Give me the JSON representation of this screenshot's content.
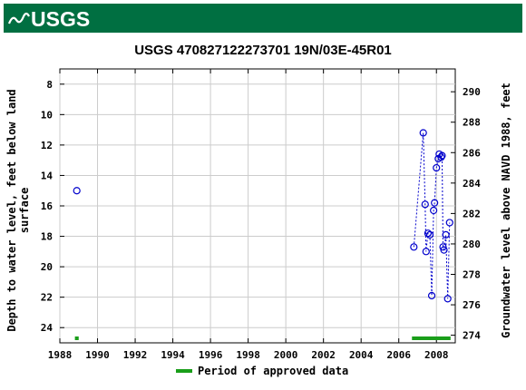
{
  "header": {
    "logo_text": "USGS",
    "bar_color": "#006f41"
  },
  "chart_data": {
    "type": "scatter",
    "title": "USGS 470827122273701 19N/03E-45R01",
    "ylabel_left": "Depth to water level, feet below land surface",
    "ylabel_left_lines": [
      "Depth to water level, feet below land",
      "surface"
    ],
    "ylabel_right": "Groundwater level above NAVD 1988, feet",
    "xlim": [
      1988,
      2009
    ],
    "ylim_left": [
      25,
      7
    ],
    "ylim_right": [
      273.5,
      291.5
    ],
    "x_ticks": [
      1988,
      1990,
      1992,
      1994,
      1996,
      1998,
      2000,
      2002,
      2004,
      2006,
      2008
    ],
    "y_ticks_left": [
      8,
      10,
      12,
      14,
      16,
      18,
      20,
      22,
      24
    ],
    "y_ticks_right": [
      274,
      276,
      278,
      280,
      282,
      284,
      286,
      288,
      290
    ],
    "grid": true,
    "series": [
      {
        "color": "#0000cc",
        "marker": "open-circle",
        "points": [
          {
            "x": 1988.9,
            "y": 15.0
          },
          {
            "x": 2006.8,
            "y": 18.7
          },
          {
            "x": 2007.3,
            "y": 11.2
          },
          {
            "x": 2007.4,
            "y": 15.9
          },
          {
            "x": 2007.45,
            "y": 19.0
          },
          {
            "x": 2007.55,
            "y": 17.8
          },
          {
            "x": 2007.65,
            "y": 17.9
          },
          {
            "x": 2007.75,
            "y": 21.9
          },
          {
            "x": 2007.85,
            "y": 16.3
          },
          {
            "x": 2007.9,
            "y": 15.8
          },
          {
            "x": 2008.0,
            "y": 13.5
          },
          {
            "x": 2008.1,
            "y": 12.9
          },
          {
            "x": 2008.15,
            "y": 12.6
          },
          {
            "x": 2008.25,
            "y": 12.8
          },
          {
            "x": 2008.3,
            "y": 12.7
          },
          {
            "x": 2008.35,
            "y": 18.7
          },
          {
            "x": 2008.4,
            "y": 18.9
          },
          {
            "x": 2008.5,
            "y": 17.9
          },
          {
            "x": 2008.6,
            "y": 22.1
          },
          {
            "x": 2008.7,
            "y": 17.1
          }
        ]
      }
    ],
    "approved_periods": [
      [
        1988.8,
        1989.0
      ],
      [
        2006.7,
        2008.75
      ]
    ],
    "approved_color": "#1a9e1a",
    "legend": {
      "label": "Period of approved data",
      "placement": "bottom-center"
    }
  }
}
